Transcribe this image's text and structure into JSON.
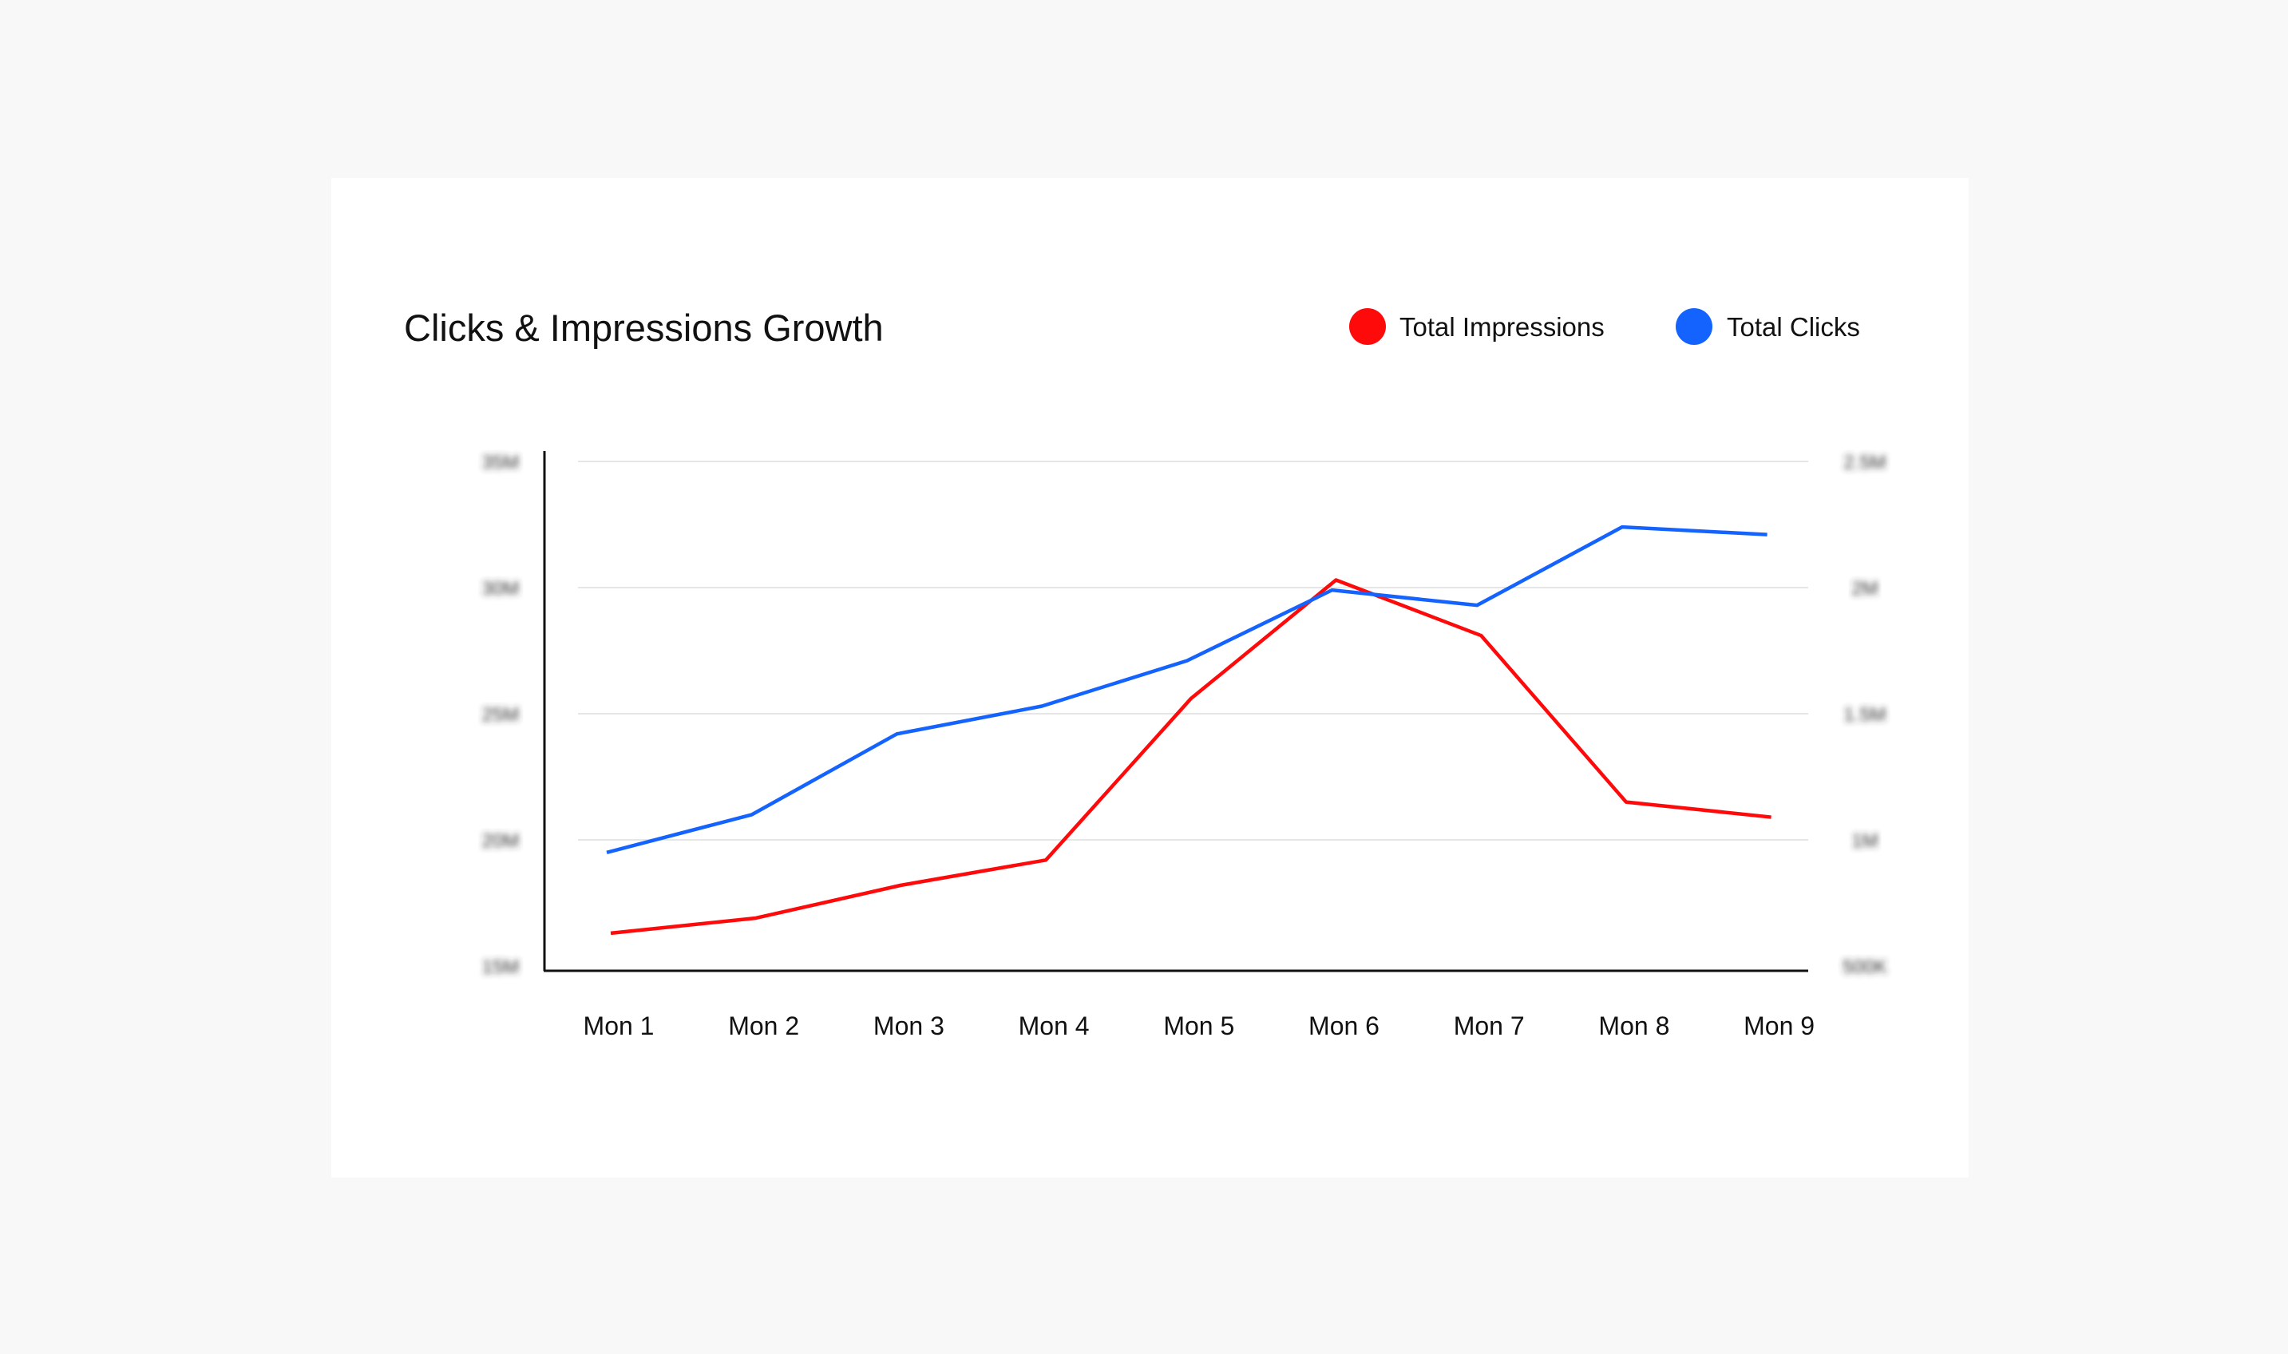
{
  "chart_data": {
    "type": "line",
    "title": "Clicks & Impressions Growth",
    "categories": [
      "Mon 1",
      "Mon 2",
      "Mon 3",
      "Mon 4",
      "Mon 5",
      "Mon 6",
      "Mon 7",
      "Mon 8",
      "Mon 9"
    ],
    "series": [
      {
        "name": "Total Impressions",
        "axis": "left",
        "color": "#ff0a0a",
        "values": [
          16.3,
          16.9,
          18.2,
          19.2,
          25.6,
          30.3,
          28.1,
          21.5,
          20.9
        ]
      },
      {
        "name": "Total Clicks",
        "axis": "right",
        "color": "#1463ff",
        "values": [
          0.95,
          1.1,
          1.42,
          1.53,
          1.71,
          1.99,
          1.93,
          2.24,
          2.21
        ]
      }
    ],
    "y_left": {
      "range": [
        15,
        35
      ],
      "unit": "M",
      "ticks": [
        "35M",
        "30M",
        "25M",
        "20M",
        "15M"
      ],
      "tick_values": [
        35,
        30,
        25,
        20,
        15
      ],
      "blurred": true
    },
    "y_right": {
      "range": [
        0.5,
        2.5
      ],
      "unit": "M",
      "ticks": [
        "2.5M",
        "2M",
        "1.5M",
        "1M",
        "500K"
      ],
      "tick_values": [
        2.5,
        2,
        1.5,
        1,
        0.5
      ],
      "blurred": true
    },
    "grid": true,
    "legend": "top-right"
  }
}
